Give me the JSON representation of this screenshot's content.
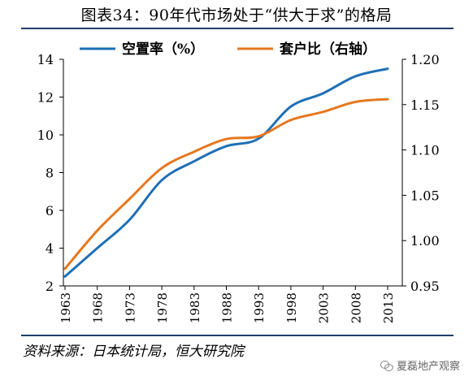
{
  "title": "图表34：90年代市场处于“供大于求”的格局",
  "source": "资料来源：日本统计局，恒大研究院",
  "watermark": "夏磊地产观察",
  "chart_data": {
    "type": "line",
    "x": [
      1963,
      1968,
      1973,
      1978,
      1983,
      1988,
      1993,
      1998,
      2003,
      2008,
      2013
    ],
    "xticks": [
      "1963",
      "1968",
      "1973",
      "1978",
      "1983",
      "1988",
      "1993",
      "1998",
      "2003",
      "2008",
      "2013"
    ],
    "series": [
      {
        "name": "空置率（%）",
        "axis": "left",
        "color": "#1e6fb5",
        "values": [
          2.5,
          4.0,
          5.5,
          7.6,
          8.6,
          9.4,
          9.8,
          11.5,
          12.2,
          13.1,
          13.5
        ]
      },
      {
        "name": "套户比（右轴）",
        "axis": "right",
        "color": "#e5781f",
        "values": [
          0.969,
          1.011,
          1.046,
          1.08,
          1.098,
          1.112,
          1.115,
          1.133,
          1.142,
          1.153,
          1.156
        ]
      }
    ],
    "ylim_left": [
      2,
      14
    ],
    "yticks_left": [
      "2",
      "4",
      "6",
      "8",
      "10",
      "12",
      "14"
    ],
    "ylim_right": [
      0.95,
      1.2
    ],
    "yticks_right": [
      "0.95",
      "1.00",
      "1.05",
      "1.10",
      "1.15",
      "1.20"
    ],
    "legend_position": "top",
    "grid": false
  }
}
